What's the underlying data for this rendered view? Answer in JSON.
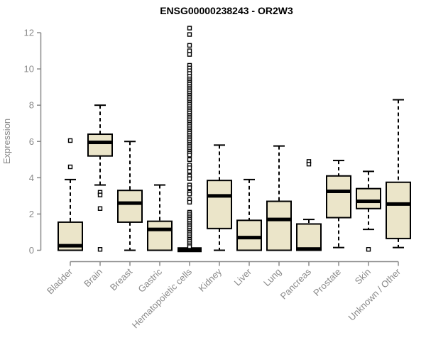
{
  "chart_data": {
    "type": "boxplot",
    "title": "ENSG00000238243 - OR2W3",
    "xlabel": "",
    "ylabel": "Expression",
    "ylim": [
      0,
      12.3
    ],
    "yticks": [
      0,
      2,
      4,
      6,
      8,
      10,
      12
    ],
    "grid": false,
    "legend": "none",
    "categories": [
      "Bladder",
      "Brain",
      "Breast",
      "Gastric",
      "Hematopoietic cells",
      "Kidney",
      "Liver",
      "Lung",
      "Pancreas",
      "Prostate",
      "Skin",
      "Unknown / Other"
    ],
    "series": [
      {
        "category": "Bladder",
        "low": 0,
        "q1": 0,
        "median": 0.25,
        "q3": 1.55,
        "high": 3.9,
        "outliers": [
          4.6,
          6.05
        ]
      },
      {
        "category": "Brain",
        "low": 3.6,
        "q1": 5.2,
        "median": 5.95,
        "q3": 6.4,
        "high": 8.0,
        "outliers": [
          3.2,
          3.05,
          2.3,
          0.05
        ]
      },
      {
        "category": "Breast",
        "low": 0,
        "q1": 1.55,
        "median": 2.6,
        "q3": 3.3,
        "high": 6.0,
        "outliers": []
      },
      {
        "category": "Gastric",
        "low": 0,
        "q1": 0,
        "median": 1.15,
        "q3": 1.6,
        "high": 3.6,
        "outliers": []
      },
      {
        "category": "Hematopoietic cells",
        "low": 0.03,
        "q1": 0.03,
        "median": 0.03,
        "q3": 0.03,
        "high": 0.03,
        "outliers": [
          12.25,
          11.9,
          11.3,
          11.0,
          10.8,
          10.2,
          10.05,
          9.9,
          9.75,
          9.6,
          9.45,
          9.35,
          9.25,
          9.15,
          9.05,
          8.95,
          8.85,
          8.75,
          8.65,
          8.55,
          8.45,
          8.35,
          8.25,
          8.15,
          8.05,
          7.95,
          7.85,
          7.75,
          7.65,
          7.55,
          7.45,
          7.35,
          7.25,
          7.15,
          7.05,
          6.95,
          6.85,
          6.75,
          6.65,
          6.55,
          6.45,
          6.35,
          6.25,
          6.15,
          6.05,
          5.95,
          5.85,
          5.75,
          5.65,
          5.55,
          5.45,
          5.35,
          5.25,
          5.0,
          4.7,
          4.55,
          4.35,
          4.1,
          3.95,
          3.6,
          3.45,
          3.2,
          3.1,
          2.8,
          2.65,
          2.1,
          2.0,
          1.9,
          1.8,
          1.7,
          1.6,
          1.5,
          1.4,
          1.3,
          1.2,
          1.1,
          1.0,
          0.9,
          0.8,
          0.7,
          0.6,
          0.5,
          0.4,
          0.3,
          0.2
        ]
      },
      {
        "category": "Kidney",
        "low": 0,
        "q1": 1.2,
        "median": 3.0,
        "q3": 3.85,
        "high": 5.8,
        "outliers": []
      },
      {
        "category": "Liver",
        "low": 0,
        "q1": 0,
        "median": 0.7,
        "q3": 1.65,
        "high": 3.9,
        "outliers": []
      },
      {
        "category": "Lung",
        "low": 0,
        "q1": 0,
        "median": 1.7,
        "q3": 2.7,
        "high": 5.75,
        "outliers": []
      },
      {
        "category": "Pancreas",
        "low": 0,
        "q1": 0,
        "median": 0.07,
        "q3": 1.45,
        "high": 1.7,
        "outliers": [
          4.9,
          4.75
        ]
      },
      {
        "category": "Prostate",
        "low": 0.15,
        "q1": 1.8,
        "median": 3.25,
        "q3": 4.1,
        "high": 4.95,
        "outliers": []
      },
      {
        "category": "Skin",
        "low": 1.15,
        "q1": 2.3,
        "median": 2.7,
        "q3": 3.4,
        "high": 4.35,
        "outliers": [
          0.05
        ]
      },
      {
        "category": "Unknown / Other",
        "low": 0.15,
        "q1": 0.65,
        "median": 2.55,
        "q3": 3.75,
        "high": 8.3,
        "outliers": []
      }
    ]
  },
  "colors": {
    "background": "#ffffff",
    "box_fill": "#EBE5C9",
    "box_border": "#000000",
    "median": "#000000",
    "whisker": "#000000",
    "outlier_fill": "#ffffff",
    "outlier_border": "#000000",
    "axis": "#8a8a8a",
    "axis_text": "#8a8a8a",
    "title_text": "#000000"
  }
}
